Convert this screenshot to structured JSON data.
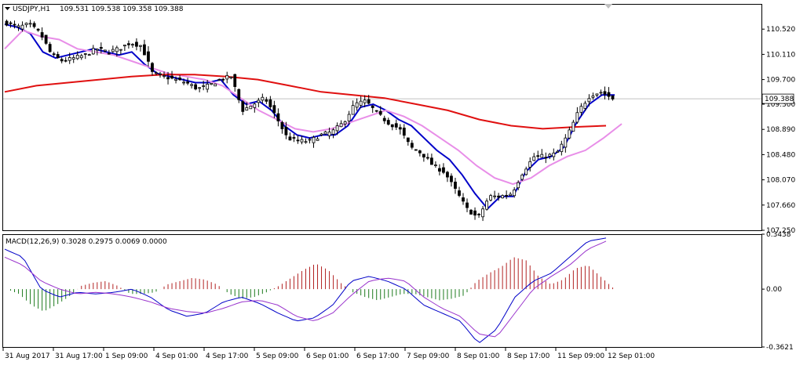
{
  "header": {
    "symbol": "USDJPY,H1",
    "ohlc": "109.531 109.538 109.358 109.388"
  },
  "macd_header": {
    "label": "MACD(12,26,9) 0.3028 0.2975 0.0069 0.0000"
  },
  "chart_data": [
    {
      "type": "candlestick",
      "symbol": "USDJPY",
      "timeframe": "H1",
      "current_price": "109.388",
      "ylim": [
        107.25,
        110.93
      ],
      "y_ticks": [
        "110.520",
        "110.110",
        "109.700",
        "109.300",
        "108.890",
        "108.480",
        "108.070",
        "107.660",
        "107.250"
      ],
      "x_ticks": [
        "31 Aug 2017",
        "31 Aug 17:00",
        "1 Sep 09:00",
        "4 Sep 01:00",
        "4 Sep 17:00",
        "5 Sep 09:00",
        "6 Sep 01:00",
        "6 Sep 17:00",
        "7 Sep 09:00",
        "8 Sep 01:00",
        "8 Sep 17:00",
        "11 Sep 09:00",
        "12 Sep 01:00"
      ],
      "close_waypoints": [
        110.62,
        110.55,
        110.6,
        110.45,
        110.1,
        110.0,
        110.05,
        110.1,
        110.2,
        110.15,
        110.2,
        110.3,
        110.25,
        109.8,
        109.75,
        109.7,
        109.65,
        109.55,
        109.6,
        109.7,
        109.75,
        109.2,
        109.3,
        109.4,
        109.1,
        108.75,
        108.7,
        108.7,
        108.8,
        108.85,
        109.0,
        109.3,
        109.35,
        109.15,
        109.0,
        108.9,
        108.6,
        108.5,
        108.3,
        108.2,
        107.9,
        107.6,
        107.45,
        107.8,
        107.8,
        107.85,
        108.2,
        108.45,
        108.45,
        108.5,
        108.8,
        109.2,
        109.45,
        109.5,
        109.39
      ],
      "series": [
        {
          "name": "",
          "color": "#0000c8",
          "values": [
            110.6,
            110.55,
            110.45,
            110.15,
            110.05,
            110.1,
            110.15,
            110.2,
            110.15,
            110.1,
            110.15,
            109.95,
            109.8,
            109.75,
            109.7,
            109.65,
            109.65,
            109.7,
            109.45,
            109.3,
            109.35,
            109.2,
            108.95,
            108.8,
            108.75,
            108.8,
            108.8,
            108.95,
            109.25,
            109.3,
            109.2,
            109.05,
            108.95,
            108.75,
            108.55,
            108.4,
            108.15,
            107.85,
            107.6,
            107.8,
            107.8,
            108.2,
            108.4,
            108.45,
            108.6,
            109.0,
            109.3,
            109.45,
            109.45
          ]
        },
        {
          "name": "",
          "color": "#e88ee8",
          "values": [
            110.2,
            110.5,
            110.4,
            110.35,
            110.2,
            110.15,
            110.1,
            110.0,
            109.9,
            109.8,
            109.75,
            109.7,
            109.6,
            109.4,
            109.2,
            109.05,
            108.9,
            108.85,
            108.9,
            109.0,
            109.1,
            109.2,
            109.1,
            108.95,
            108.75,
            108.55,
            108.3,
            108.1,
            108.0,
            108.1,
            108.3,
            108.45,
            108.55,
            108.75,
            108.98
          ]
        },
        {
          "name": "",
          "color": "#e01010",
          "values": [
            109.5,
            109.6,
            109.65,
            109.7,
            109.75,
            109.78,
            109.78,
            109.75,
            109.7,
            109.6,
            109.5,
            109.45,
            109.4,
            109.3,
            109.2,
            109.05,
            108.95,
            108.9,
            108.93,
            108.95
          ]
        }
      ]
    },
    {
      "type": "macd",
      "params": "12,26,9",
      "values": {
        "macd": 0.3028,
        "signal": 0.2975,
        "histogram": 0.0069,
        "extra": 0.0
      },
      "ylim": [
        -0.3621,
        0.3438
      ],
      "y_ticks": [
        "0.3438",
        "0.00",
        "-0.3621"
      ],
      "histogram_waypoints": [
        0.0,
        -0.03,
        -0.1,
        -0.14,
        -0.1,
        -0.05,
        0.02,
        0.04,
        0.05,
        0.02,
        -0.03,
        -0.03,
        -0.02,
        0.03,
        0.05,
        0.07,
        0.06,
        0.03,
        -0.03,
        -0.06,
        -0.05,
        -0.02,
        0.02,
        0.07,
        0.12,
        0.16,
        0.12,
        0.04,
        -0.02,
        -0.05,
        -0.07,
        -0.05,
        -0.03,
        -0.03,
        -0.05,
        -0.07,
        -0.06,
        -0.04,
        0.05,
        0.1,
        0.14,
        0.2,
        0.18,
        0.08,
        0.03,
        0.06,
        0.13,
        0.15,
        0.08,
        0.01
      ],
      "macd_waypoints": [
        0.25,
        0.2,
        0.0,
        -0.05,
        -0.02,
        -0.03,
        -0.02,
        0.0,
        -0.05,
        -0.13,
        -0.17,
        -0.15,
        -0.08,
        -0.05,
        -0.09,
        -0.15,
        -0.2,
        -0.18,
        -0.1,
        0.05,
        0.08,
        0.05,
        0.0,
        -0.1,
        -0.15,
        -0.2,
        -0.34,
        -0.25,
        -0.05,
        0.05,
        0.1,
        0.2,
        0.3,
        0.32
      ],
      "signal_waypoints": [
        0.2,
        0.15,
        0.05,
        0.0,
        -0.03,
        -0.02,
        -0.03,
        -0.05,
        -0.08,
        -0.12,
        -0.14,
        -0.15,
        -0.12,
        -0.08,
        -0.07,
        -0.1,
        -0.17,
        -0.2,
        -0.15,
        -0.04,
        0.05,
        0.07,
        0.05,
        -0.05,
        -0.12,
        -0.17,
        -0.28,
        -0.3,
        -0.15,
        0.0,
        0.08,
        0.15,
        0.25,
        0.3
      ]
    }
  ],
  "colors": {
    "bull_candle": "#ffffff",
    "bear_candle": "#000000",
    "hist_positive": "#b22222",
    "hist_negative": "#1e7b1e",
    "macd_line": "#0000c8",
    "signal_line": "#9932cc",
    "price_label_bg": "#ffffff"
  }
}
